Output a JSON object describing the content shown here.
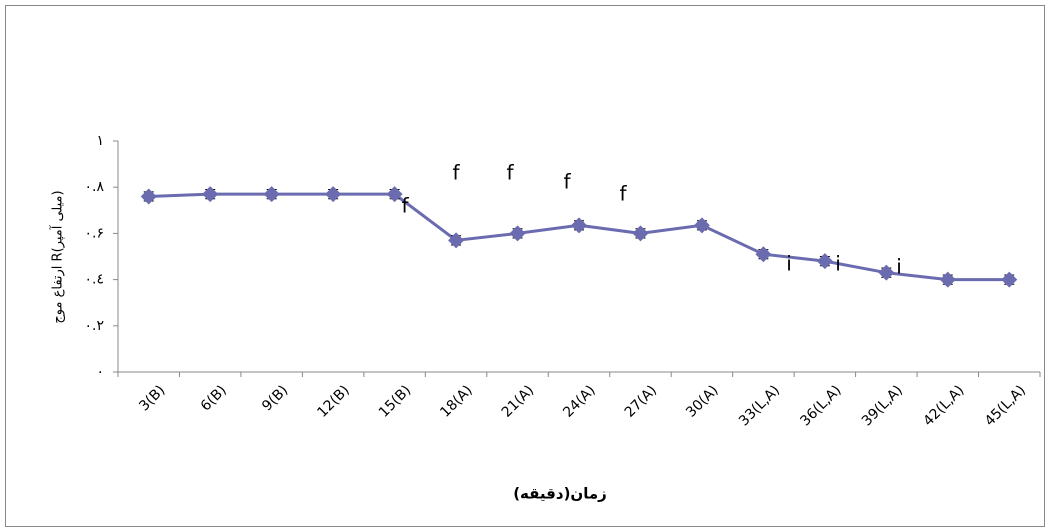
{
  "chart_data": {
    "type": "line",
    "x_label": "زمان(دقیقه)",
    "y_label": "ارتفاع موج R(میلی آمپر)",
    "categories": [
      "3(B)",
      "6(B)",
      "9(B)",
      "12(B)",
      "15(B)",
      "18(A)",
      "21(A)",
      "24(A)",
      "27(A)",
      "30(A)",
      "33(L,A)",
      "36(L,A)",
      "39(L,A)",
      "42(L,A)",
      "45(L,A)"
    ],
    "series": [
      {
        "color": "#6b6bb0",
        "values": [
          0.76,
          0.77,
          0.77,
          0.77,
          0.77,
          0.57,
          0.6,
          0.635,
          0.6,
          0.635,
          0.51,
          0.48,
          0.43,
          0.4,
          0.4
        ],
        "errors": [
          0.02,
          0.02,
          0.02,
          0.02,
          0.02,
          0.02,
          0.02,
          0.02,
          0.02,
          0.02,
          0.02,
          0.02,
          0.02,
          0.02,
          0.02
        ]
      }
    ],
    "annotations": [
      "f",
      "f",
      "f",
      "f",
      "f",
      "i",
      "i",
      "i"
    ],
    "ylim": [
      0,
      1
    ],
    "yticks": [
      {
        "value": 0,
        "label": "۰"
      },
      {
        "value": 0.2,
        "label": "۰.۲"
      },
      {
        "value": 0.4,
        "label": "۰.٤"
      },
      {
        "value": 0.6,
        "label": "۰.۶"
      },
      {
        "value": 0.8,
        "label": "۰.۸"
      },
      {
        "value": 1,
        "label": "۱"
      }
    ],
    "grid": false
  }
}
